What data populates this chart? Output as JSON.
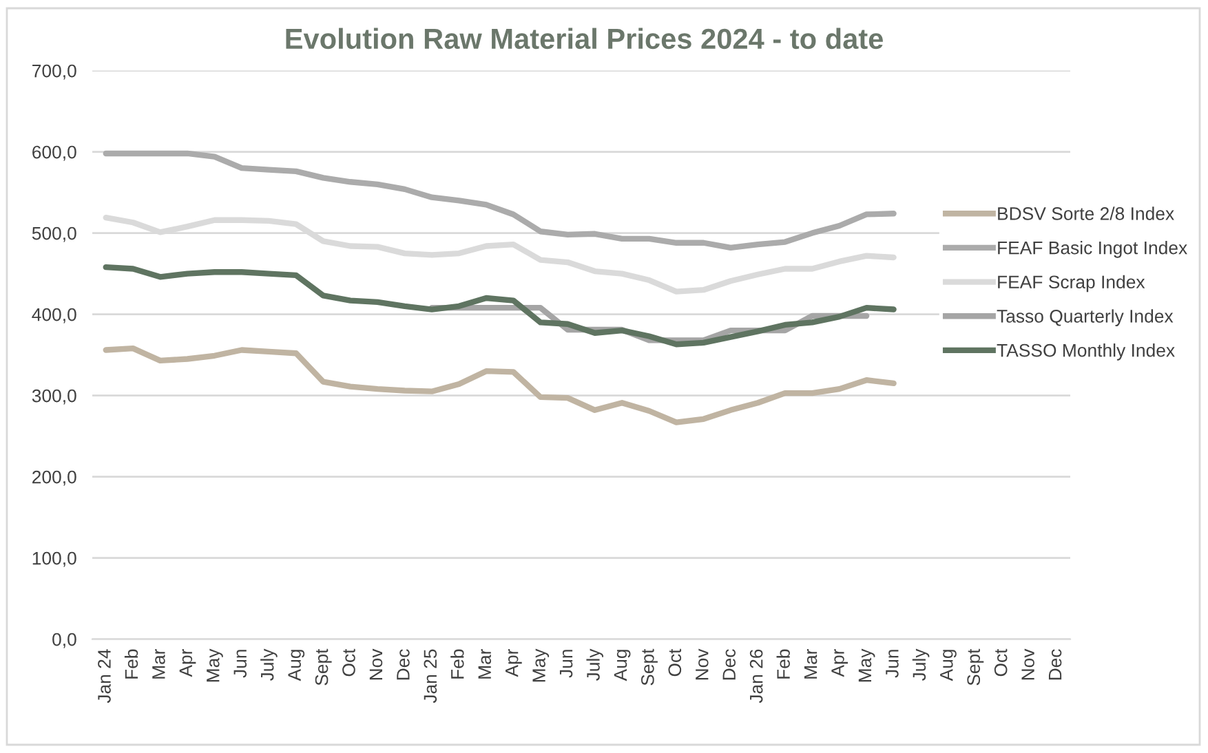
{
  "chart_data": {
    "type": "line",
    "title": "Evolution Raw Material Prices 2024 - to date",
    "categories": [
      "Jan 24",
      "Feb",
      "Mar",
      "Apr",
      "May",
      "Jun",
      "July",
      "Aug",
      "Sept",
      "Oct",
      "Nov",
      "Dec",
      "Jan 25",
      "Feb",
      "Mar",
      "Apr",
      "May",
      "Jun",
      "July",
      "Aug",
      "Sept",
      "Oct",
      "Nov",
      "Dec",
      "Jan 26",
      "Feb",
      "Mar",
      "Apr",
      "May",
      "Jun",
      "July",
      "Aug",
      "Sept",
      "Oct",
      "Nov",
      "Dec"
    ],
    "series": [
      {
        "name": "BDSV Sorte 2/8 Index",
        "color": "#c0b4a2",
        "values": [
          356,
          358,
          343,
          345,
          349,
          356,
          354,
          352,
          317,
          311,
          308,
          306,
          305,
          314,
          330,
          329,
          298,
          297,
          282,
          291,
          281,
          267,
          271,
          282,
          291,
          303,
          303,
          308,
          319,
          315,
          null,
          null,
          null,
          null,
          null,
          null
        ]
      },
      {
        "name": "FEAF Basic Ingot Index",
        "color": "#ababab",
        "values": [
          598,
          598,
          598,
          598,
          594,
          580,
          578,
          576,
          568,
          563,
          560,
          554,
          544,
          540,
          535,
          523,
          502,
          498,
          499,
          493,
          493,
          488,
          488,
          482,
          486,
          489,
          500,
          509,
          523,
          524,
          null,
          null,
          null,
          null,
          null,
          null
        ]
      },
      {
        "name": "FEAF Scrap Index",
        "color": "#dadada",
        "values": [
          519,
          513,
          501,
          508,
          516,
          516,
          515,
          511,
          490,
          484,
          483,
          475,
          473,
          475,
          484,
          486,
          467,
          464,
          453,
          450,
          442,
          428,
          430,
          441,
          449,
          456,
          456,
          465,
          472,
          470,
          null,
          null,
          null,
          null,
          null,
          null
        ]
      },
      {
        "name": "Tasso Quarterly Index",
        "color": "#a5a5a5",
        "values": [
          null,
          null,
          null,
          null,
          null,
          null,
          null,
          null,
          null,
          null,
          null,
          null,
          408,
          408,
          408,
          408,
          408,
          381,
          381,
          381,
          368,
          368,
          368,
          380,
          380,
          380,
          398,
          398,
          398,
          null,
          null,
          null,
          null,
          null,
          null,
          null
        ]
      },
      {
        "name": "TASSO Monthly Index",
        "color": "#5f7461",
        "values": [
          458,
          456,
          446,
          450,
          452,
          452,
          450,
          448,
          423,
          417,
          415,
          410,
          406,
          410,
          420,
          417,
          390,
          388,
          377,
          380,
          373,
          363,
          365,
          372,
          379,
          387,
          390,
          397,
          408,
          406,
          null,
          null,
          null,
          null,
          null,
          null
        ]
      }
    ],
    "ylim": [
      0,
      700
    ],
    "yticks": [
      {
        "value": 0,
        "label": "0,0"
      },
      {
        "value": 100,
        "label": "100,0"
      },
      {
        "value": 200,
        "label": "200,0"
      },
      {
        "value": 300,
        "label": "300,0"
      },
      {
        "value": 400,
        "label": "400,0"
      },
      {
        "value": 500,
        "label": "500,0"
      },
      {
        "value": 600,
        "label": "600,0"
      },
      {
        "value": 700,
        "label": "700,0"
      }
    ],
    "grid": "y",
    "legend": "right",
    "line_style": "solid"
  }
}
